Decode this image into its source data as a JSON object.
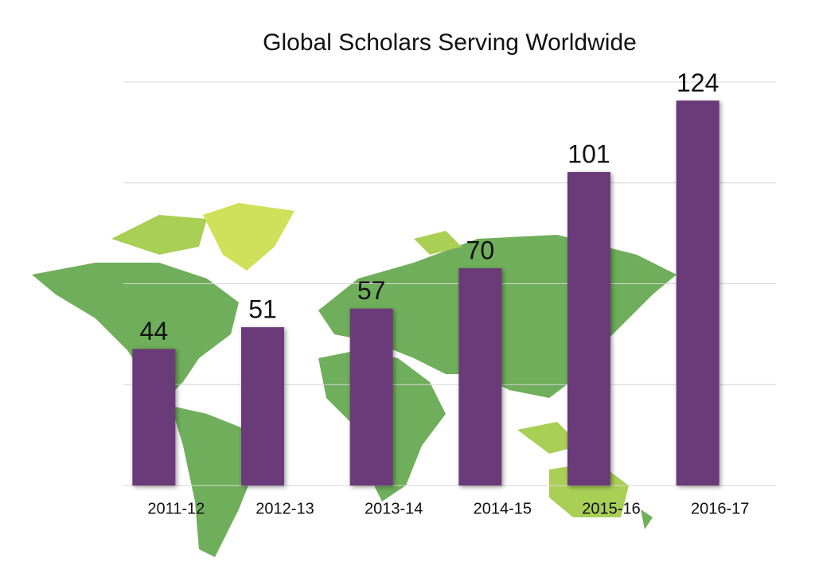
{
  "chart_data": {
    "type": "bar",
    "title": "Global Scholars Serving Worldwide",
    "categories": [
      "2011-12",
      "2012-13",
      "2013-14",
      "2014-15",
      "2015-16",
      "2016-17"
    ],
    "values": [
      44,
      51,
      57,
      70,
      101,
      124
    ],
    "color": "#6b3a78",
    "ylim": [
      0,
      130
    ],
    "yticks": [
      0,
      32.5,
      65,
      97.5,
      130
    ],
    "grid": true
  }
}
